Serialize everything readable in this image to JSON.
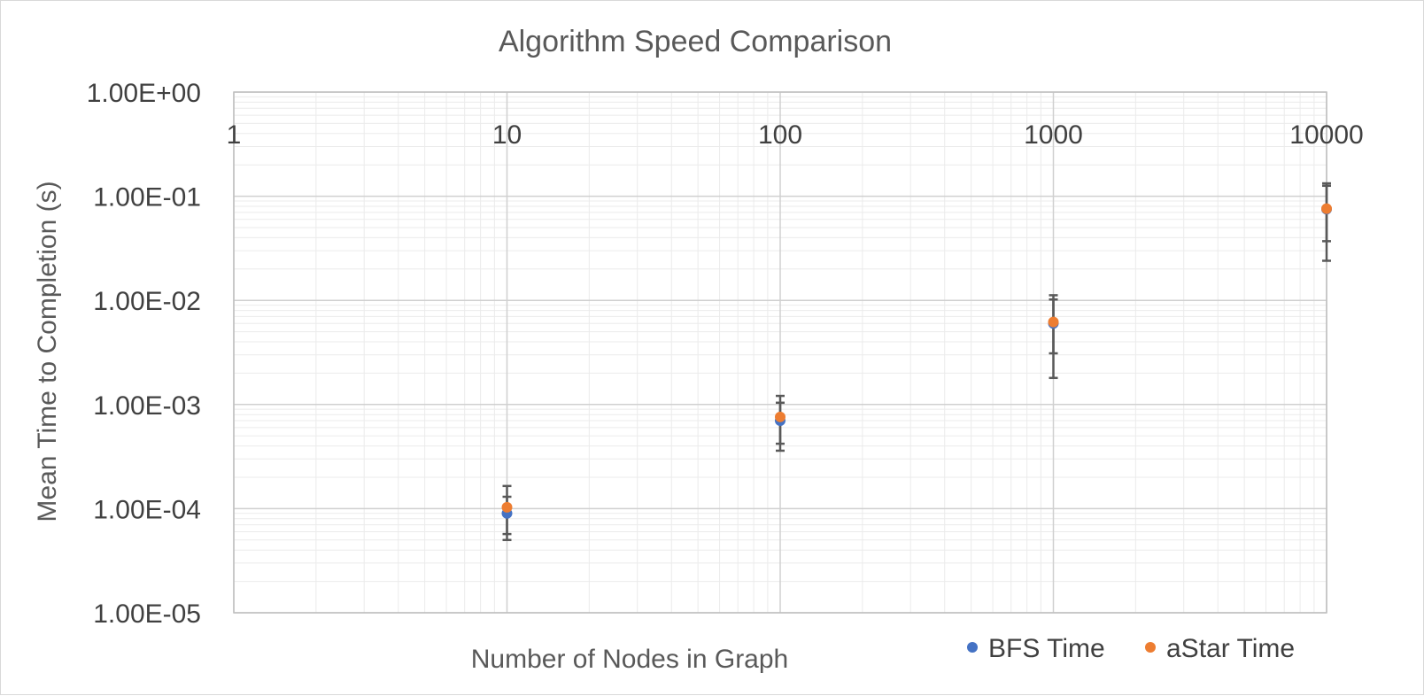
{
  "chart_data": {
    "type": "scatter",
    "title": "Algorithm Speed Comparison",
    "xlabel": "Number of Nodes in Graph",
    "ylabel": "Mean Time to Completion (s)",
    "x_scale": "log",
    "y_scale": "log",
    "xlim": [
      1,
      10000
    ],
    "ylim": [
      1e-05,
      1
    ],
    "x_ticks": [
      "1",
      "10",
      "100",
      "1000",
      "10000"
    ],
    "y_ticks": [
      "1.00E+00",
      "1.00E-01",
      "1.00E-02",
      "1.00E-03",
      "1.00E-04",
      "1.00E-05"
    ],
    "grid": true,
    "legend_position": "bottom-right",
    "series": [
      {
        "name": "BFS Time",
        "color": "#4472C4",
        "x": [
          10,
          100,
          1000,
          10000
        ],
        "y": [
          9e-05,
          0.0007,
          0.006,
          0.075
        ],
        "err_low": [
          5e-05,
          0.00036,
          0.0018,
          0.024
        ],
        "err_high": [
          0.00013,
          0.00104,
          0.0102,
          0.126
        ]
      },
      {
        "name": "aStar Time",
        "color": "#ED7D31",
        "x": [
          10,
          100,
          1000,
          10000
        ],
        "y": [
          0.000103,
          0.00076,
          0.0062,
          0.076
        ],
        "err_low": [
          5.7e-05,
          0.00042,
          0.0031,
          0.037
        ],
        "err_high": [
          0.000165,
          0.00121,
          0.0112,
          0.133
        ]
      }
    ]
  }
}
